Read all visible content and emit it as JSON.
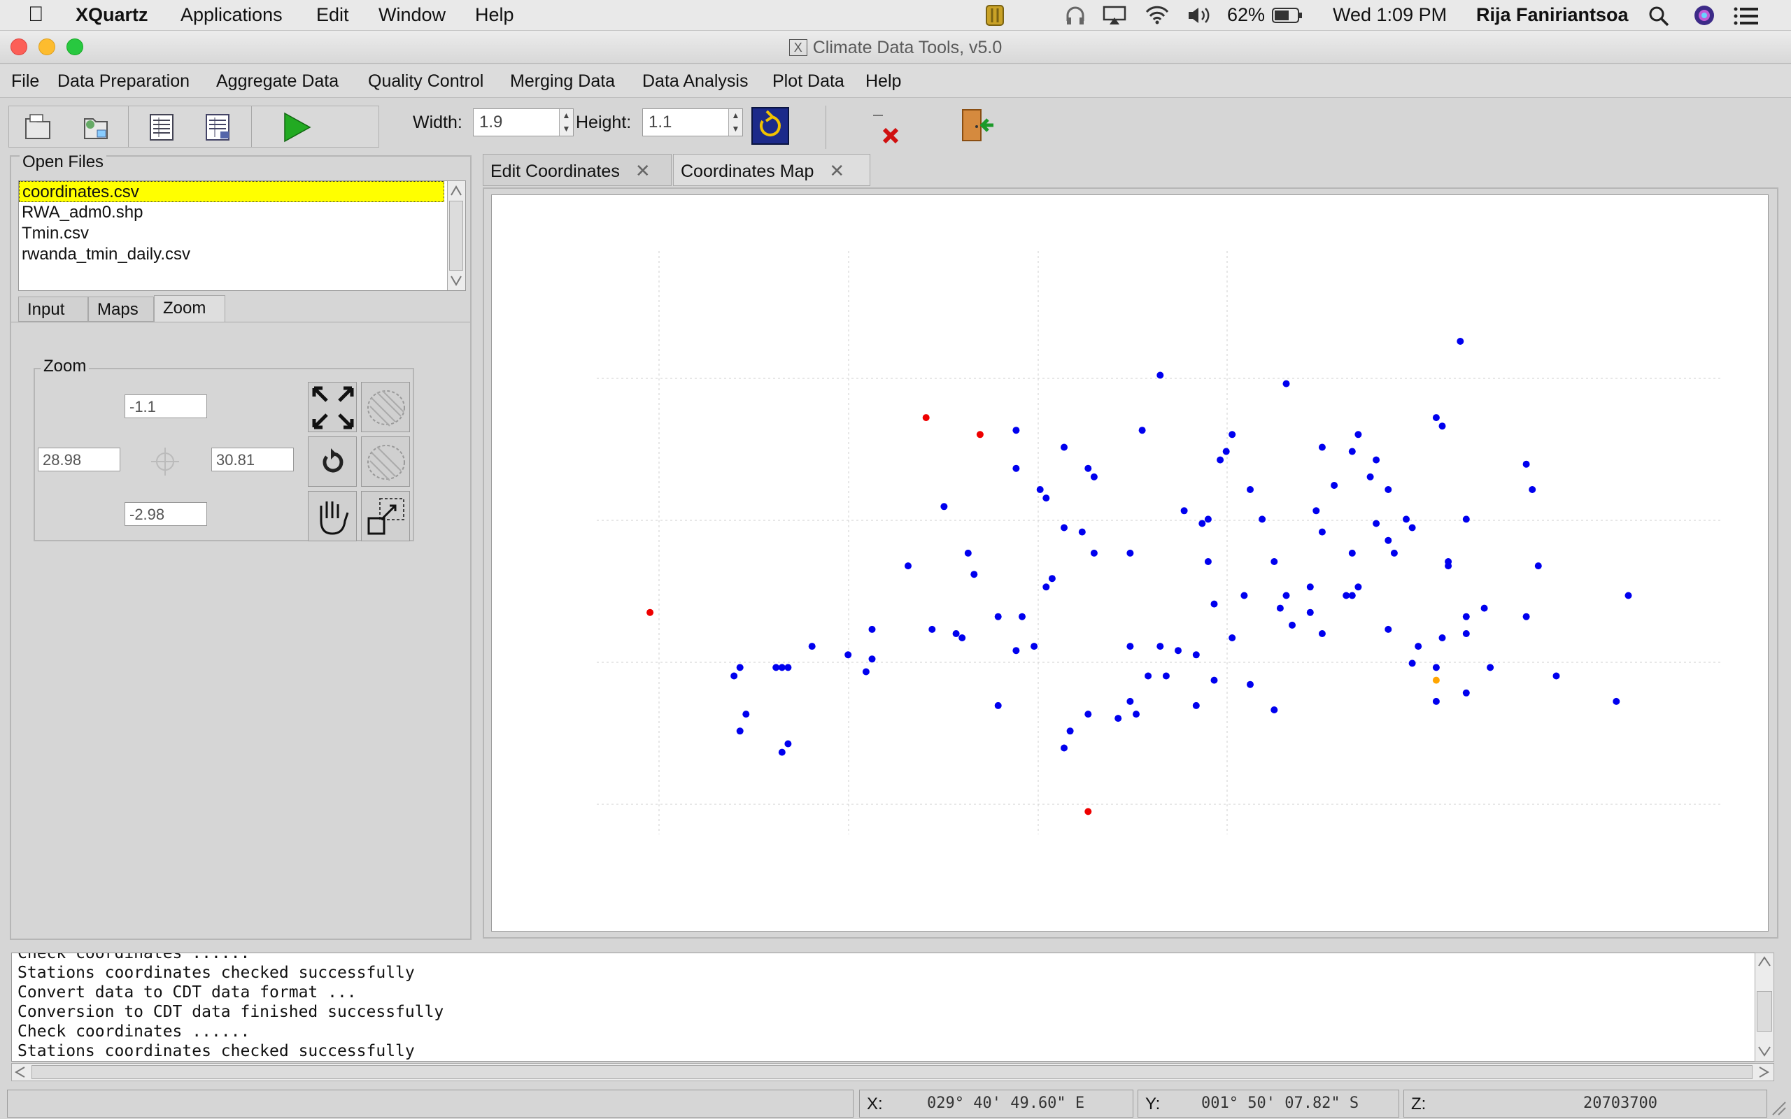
{
  "menubar": {
    "app": "XQuartz",
    "items": [
      "Applications",
      "Edit",
      "Window",
      "Help"
    ],
    "battery": "62%",
    "clock": "Wed 1:09 PM",
    "user": "Rija Faniriantsoa"
  },
  "window": {
    "title": "Climate Data Tools, v5.0"
  },
  "appmenu": [
    "File",
    "Data Preparation",
    "Aggregate Data",
    "Quality Control",
    "Merging Data",
    "Data Analysis",
    "Plot Data",
    "Help"
  ],
  "toolbar": {
    "width_label": "Width:",
    "width_value": "1.9",
    "height_label": "Height:",
    "height_value": "1.1"
  },
  "leftpanel": {
    "open_files_title": "Open Files",
    "files": [
      "coordinates.csv",
      "RWA_adm0.shp",
      "Tmin.csv",
      "rwanda_tmin_daily.csv"
    ],
    "tabs": [
      "Input",
      "Maps",
      "Zoom"
    ],
    "zoom": {
      "title": "Zoom",
      "top": "-1.1",
      "left": "28.98",
      "right": "30.81",
      "bottom": "-2.98"
    }
  },
  "tabs": [
    {
      "label": "Edit Coordinates"
    },
    {
      "label": "Coordinates Map"
    }
  ],
  "colors": {
    "station": "#0000ee",
    "flagged": "#ee0000",
    "selected": "#ffa500",
    "highlight": "#ffff00"
  },
  "chart_data": {
    "type": "scatter",
    "grid": true,
    "series": [
      {
        "color": "#0000ee",
        "points": [
          [
            29.9,
            -1.38
          ],
          [
            30.11,
            -1.4
          ],
          [
            30.02,
            -1.52
          ],
          [
            30.0,
            -1.58
          ],
          [
            30.05,
            -1.65
          ],
          [
            30.16,
            -1.7
          ],
          [
            30.17,
            -1.55
          ],
          [
            30.19,
            -1.64
          ],
          [
            30.25,
            -1.62
          ],
          [
            30.28,
            -1.65
          ],
          [
            30.26,
            -1.58
          ],
          [
            29.98,
            -1.72
          ],
          [
            29.94,
            -1.7
          ],
          [
            30.07,
            -1.72
          ],
          [
            30.09,
            -1.82
          ],
          [
            30.15,
            -1.88
          ],
          [
            30.17,
            -1.75
          ],
          [
            29.78,
            -1.6
          ],
          [
            29.7,
            -1.65
          ],
          [
            29.71,
            -1.67
          ],
          [
            29.74,
            -1.74
          ],
          [
            29.79,
            -1.62
          ],
          [
            29.79,
            -1.8
          ],
          [
            29.72,
            -1.86
          ],
          [
            29.67,
            -1.95
          ],
          [
            29.59,
            -1.85
          ],
          [
            29.63,
            -1.95
          ],
          [
            29.52,
            -1.98
          ],
          [
            29.57,
            -2.0
          ],
          [
            29.66,
            -2.03
          ],
          [
            29.69,
            -2.02
          ],
          [
            29.77,
            -1.75
          ],
          [
            29.85,
            -1.8
          ],
          [
            29.98,
            -1.82
          ],
          [
            30.1,
            -1.93
          ],
          [
            30.15,
            -1.94
          ],
          [
            30.22,
            -1.9
          ],
          [
            30.23,
            -1.88
          ],
          [
            29.71,
            -1.88
          ],
          [
            29.63,
            -2.16
          ],
          [
            29.85,
            -2.02
          ],
          [
            29.88,
            -2.09
          ],
          [
            29.93,
            -2.03
          ],
          [
            29.85,
            -2.15
          ],
          [
            29.9,
            -2.02
          ],
          [
            29.91,
            -2.09
          ],
          [
            29.83,
            -2.19
          ],
          [
            29.86,
            -2.18
          ],
          [
            29.78,
            -2.18
          ],
          [
            29.75,
            -2.22
          ],
          [
            29.74,
            -2.26
          ],
          [
            29.42,
            -1.98
          ],
          [
            29.38,
            -2.04
          ],
          [
            29.41,
            -2.08
          ],
          [
            29.42,
            -2.05
          ],
          [
            29.32,
            -2.02
          ],
          [
            29.26,
            -2.07
          ],
          [
            29.28,
            -2.07
          ],
          [
            29.27,
            -2.07
          ],
          [
            29.2,
            -2.07
          ],
          [
            29.19,
            -2.09
          ],
          [
            29.21,
            -2.18
          ],
          [
            29.2,
            -2.22
          ],
          [
            29.28,
            -2.25
          ],
          [
            29.27,
            -2.27
          ],
          [
            29.66,
            -1.51
          ],
          [
            29.74,
            -1.55
          ],
          [
            29.87,
            -1.51
          ],
          [
            30.01,
            -1.56
          ],
          [
            30.17,
            -1.99
          ],
          [
            30.33,
            -2.02
          ],
          [
            30.41,
            -1.95
          ],
          [
            30.36,
            -2.07
          ],
          [
            30.45,
            -2.07
          ],
          [
            30.28,
            -1.98
          ],
          [
            30.32,
            -2.06
          ],
          [
            30.41,
            -1.99
          ],
          [
            30.51,
            -1.95
          ],
          [
            30.68,
            -1.9
          ],
          [
            30.66,
            -2.15
          ],
          [
            30.41,
            -2.13
          ],
          [
            30.56,
            -2.09
          ],
          [
            30.36,
            -2.15
          ],
          [
            30.38,
            -1.83
          ],
          [
            30.23,
            -1.52
          ],
          [
            30.22,
            -1.56
          ],
          [
            30.38,
            -1.82
          ],
          [
            30.44,
            -1.93
          ],
          [
            30.53,
            -1.83
          ],
          [
            30.26,
            -1.73
          ],
          [
            30.28,
            -1.77
          ],
          [
            30.31,
            -1.72
          ],
          [
            30.32,
            -1.74
          ],
          [
            30.29,
            -1.8
          ],
          [
            30.21,
            -1.9
          ],
          [
            30.11,
            -1.9
          ],
          [
            30.04,
            -1.9
          ],
          [
            30.12,
            -1.97
          ],
          [
            30.02,
            -2.0
          ],
          [
            29.99,
            -2.1
          ],
          [
            29.96,
            -2.04
          ],
          [
            30.05,
            -2.11
          ],
          [
            30.09,
            -2.17
          ],
          [
            29.96,
            -2.16
          ],
          [
            29.99,
            -1.92
          ],
          [
            30.4,
            -1.3
          ],
          [
            30.36,
            -1.48
          ],
          [
            30.37,
            -1.5
          ],
          [
            30.51,
            -1.59
          ],
          [
            30.52,
            -1.65
          ],
          [
            30.41,
            -1.72
          ],
          [
            29.54,
            -1.69
          ],
          [
            29.58,
            -1.8
          ],
          [
            29.66,
            -1.6
          ],
          [
            30.22,
            -1.8
          ],
          [
            30.37,
            -2.0
          ],
          [
            29.48,
            -1.83
          ],
          [
            29.56,
            -1.99
          ],
          [
            29.97,
            -1.73
          ]
        ]
      },
      {
        "color": "#ee0000",
        "points": [
          [
            29.51,
            -1.48
          ],
          [
            29.6,
            -1.52
          ],
          [
            29.05,
            -1.94
          ],
          [
            29.78,
            -2.41
          ]
        ]
      },
      {
        "color": "#ffa500",
        "points": [
          [
            30.36,
            -2.1
          ]
        ]
      }
    ]
  },
  "log": [
    "Check coordinates ......",
    "Stations coordinates checked successfully",
    "Convert data to CDT data format ...",
    "Conversion to CDT data finished successfully",
    "Check coordinates ......",
    "Stations coordinates checked successfully"
  ],
  "status": {
    "x_label": "X:",
    "x_value": "029° 40' 49.60\" E",
    "y_label": "Y:",
    "y_value": "001° 50' 07.82\" S",
    "z_label": "Z:",
    "z_value": "20703700"
  }
}
